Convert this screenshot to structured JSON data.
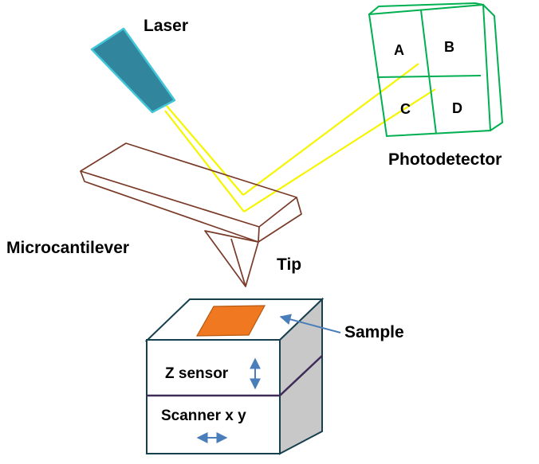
{
  "labels": {
    "laser": "Laser",
    "photodetector": "Photodetector",
    "microcantilever": "Microcantilever",
    "tip": "Tip",
    "sample": "Sample",
    "z_sensor": "Z sensor",
    "scanner": "Scanner x y"
  },
  "quadrants": [
    "A",
    "B",
    "C",
    "D"
  ],
  "colors": {
    "laser_body": "#31859c",
    "laser_outline": "#43c6d9",
    "beam": "#f5f500",
    "photodetector": "#00b050",
    "cantilever": "#7a3a28",
    "sample_fill": "#f07820",
    "sample_outline": "#b45a10",
    "stage_outline": "#17404f",
    "stage_side": "#c8c8c8",
    "stage_divider": "#3f2b57",
    "arrow": "#4a7ebb"
  },
  "icons": {
    "z_arrow": "double-arrow-vertical-icon",
    "xy_arrow": "double-arrow-horizontal-icon",
    "sample_pointer": "pointer-arrow-icon"
  }
}
